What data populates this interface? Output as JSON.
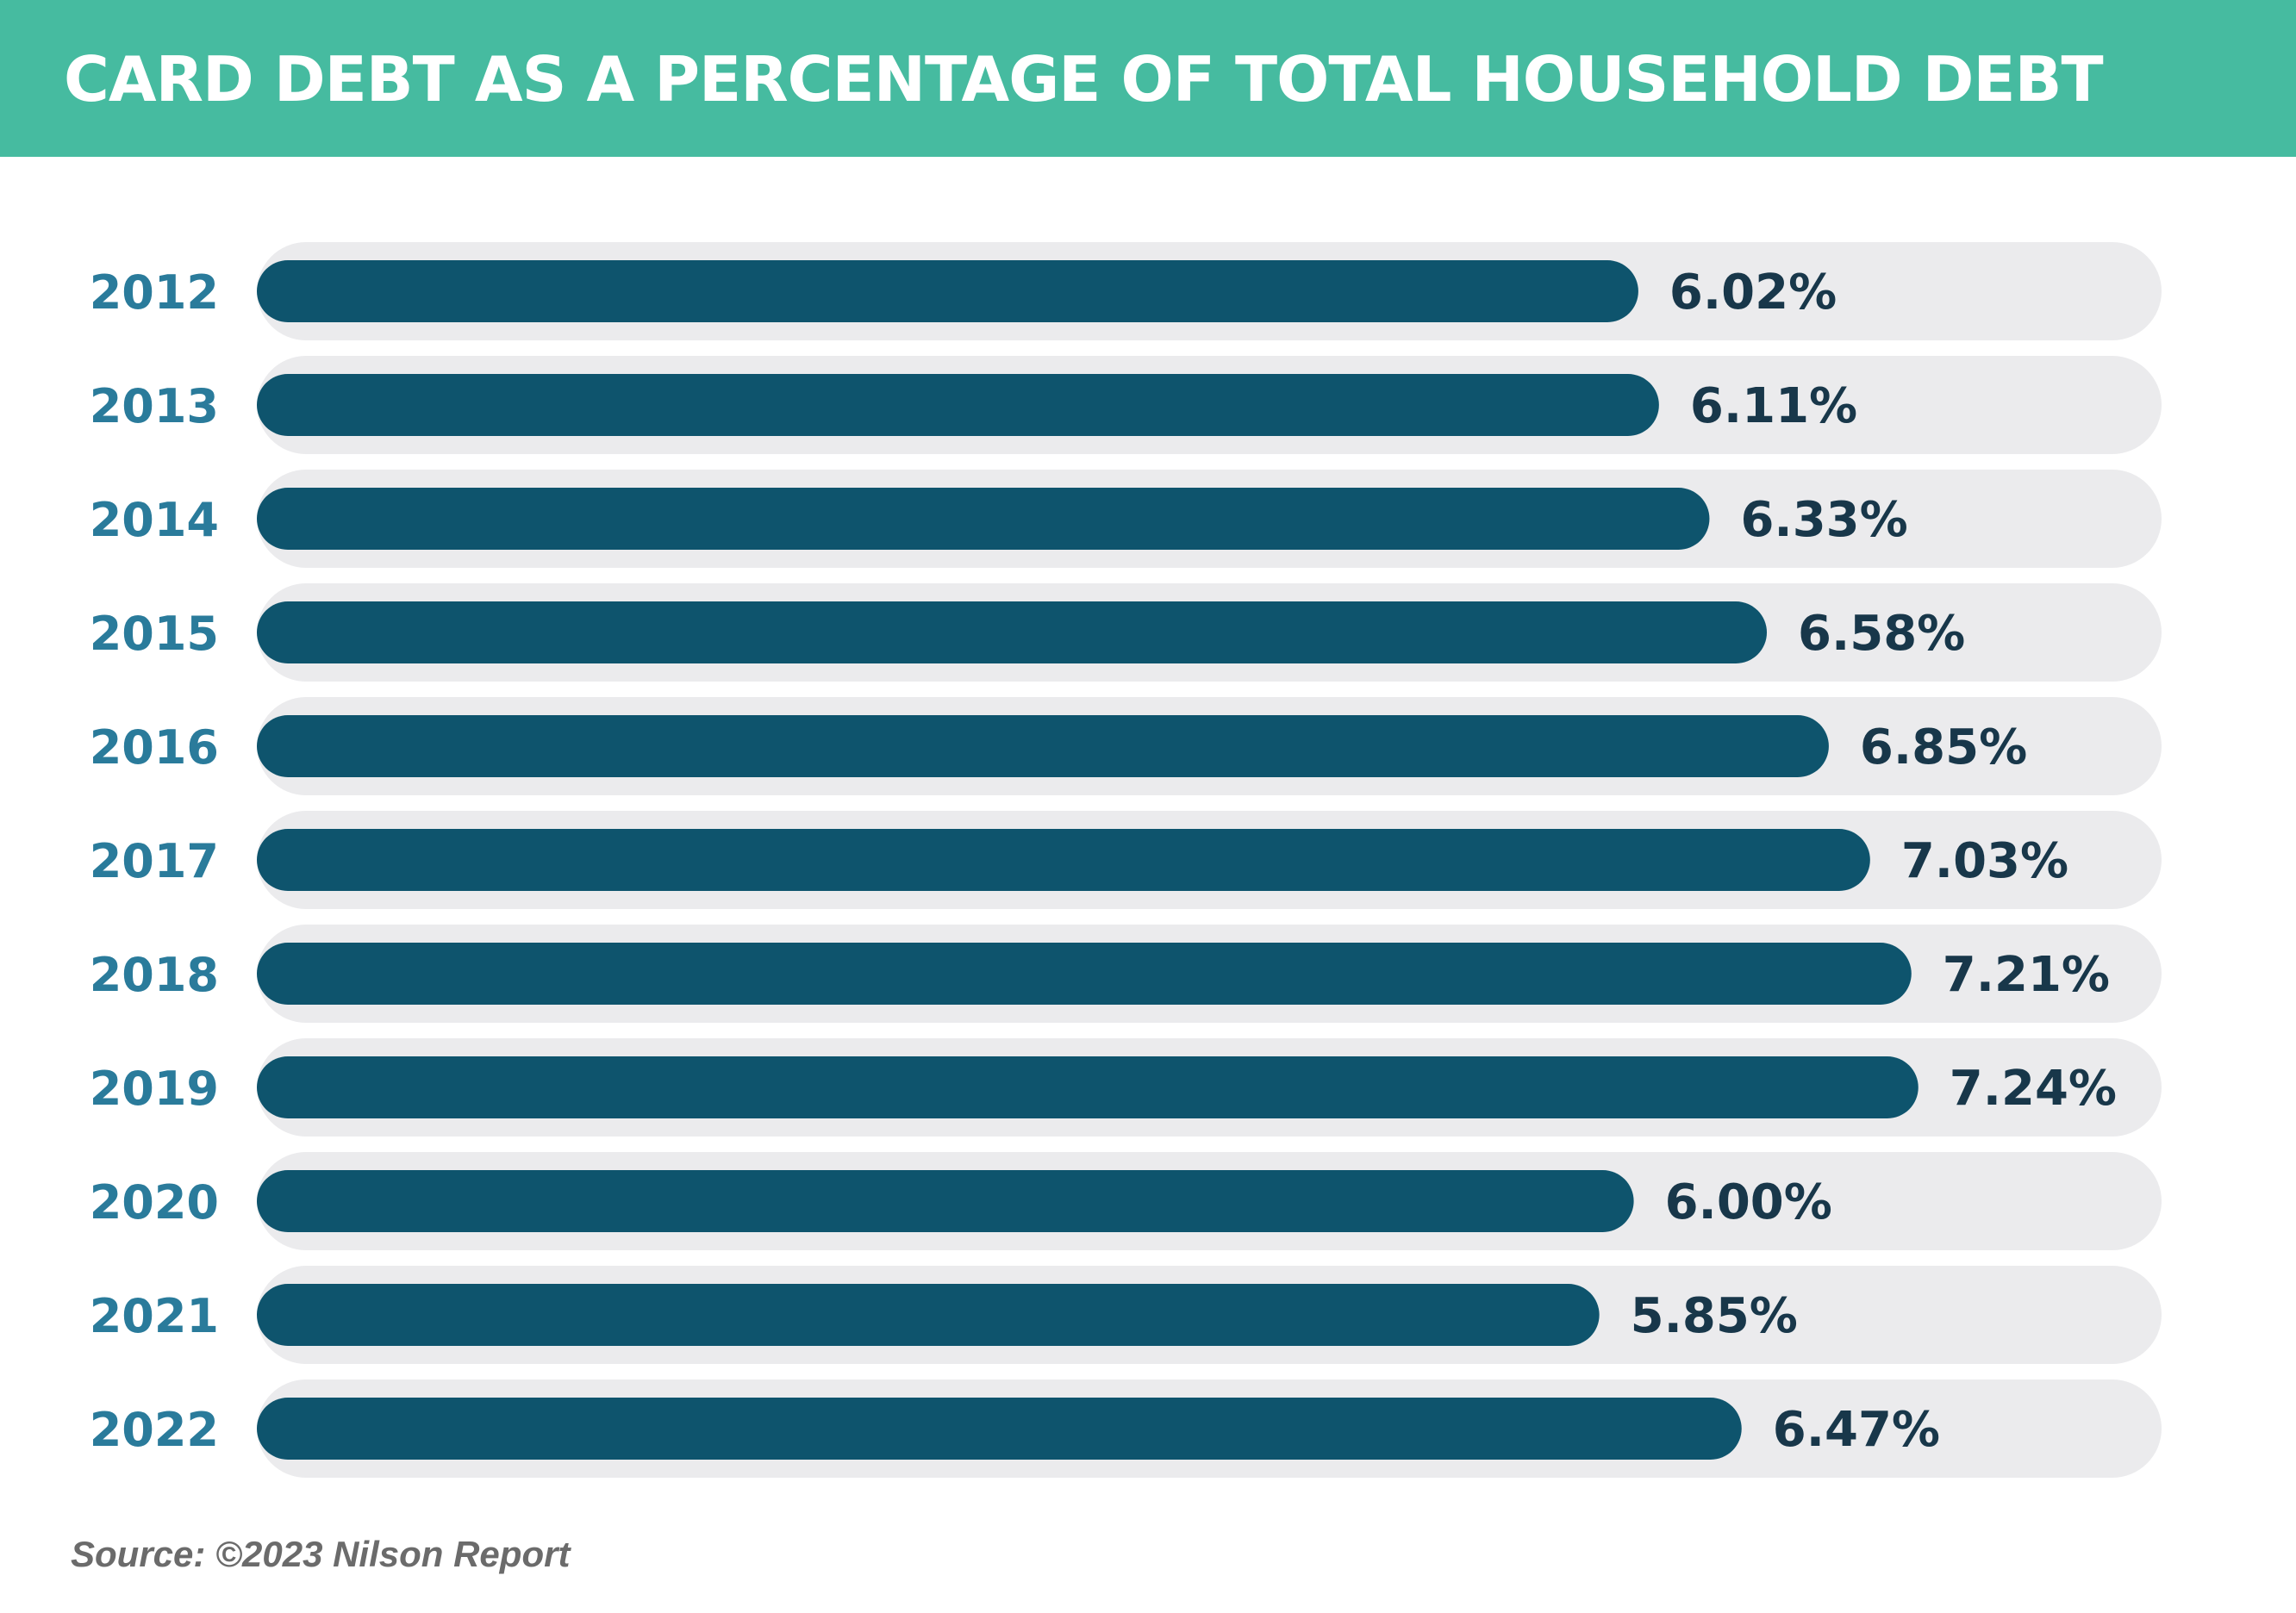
{
  "header": {
    "title": "CARD DEBT AS A PERCENTAGE OF TOTAL HOUSEHOLD DEBT"
  },
  "chart_data": {
    "type": "bar",
    "orientation": "horizontal",
    "title": "CARD DEBT AS A PERCENTAGE OF TOTAL HOUSEHOLD DEBT",
    "categories": [
      "2012",
      "2013",
      "2014",
      "2015",
      "2016",
      "2017",
      "2018",
      "2019",
      "2020",
      "2021",
      "2022"
    ],
    "values": [
      6.02,
      6.11,
      6.33,
      6.58,
      6.85,
      7.03,
      7.21,
      7.24,
      6.0,
      5.85,
      6.47
    ],
    "value_labels": [
      "6.02%",
      "6.11%",
      "6.33%",
      "6.58%",
      "6.85%",
      "7.03%",
      "7.21%",
      "7.24%",
      "6.00%",
      "5.85%",
      "6.47%"
    ],
    "xlim": [
      0,
      8.3
    ],
    "grid": false,
    "legend": "none",
    "colors": {
      "bar": "#0e546d",
      "track": "#ebebed",
      "year_label": "#2a7b9b",
      "value_label": "#18374a",
      "header": "#46bba0"
    }
  },
  "footer": {
    "source": "Source: ©2023 Nilson Report"
  }
}
